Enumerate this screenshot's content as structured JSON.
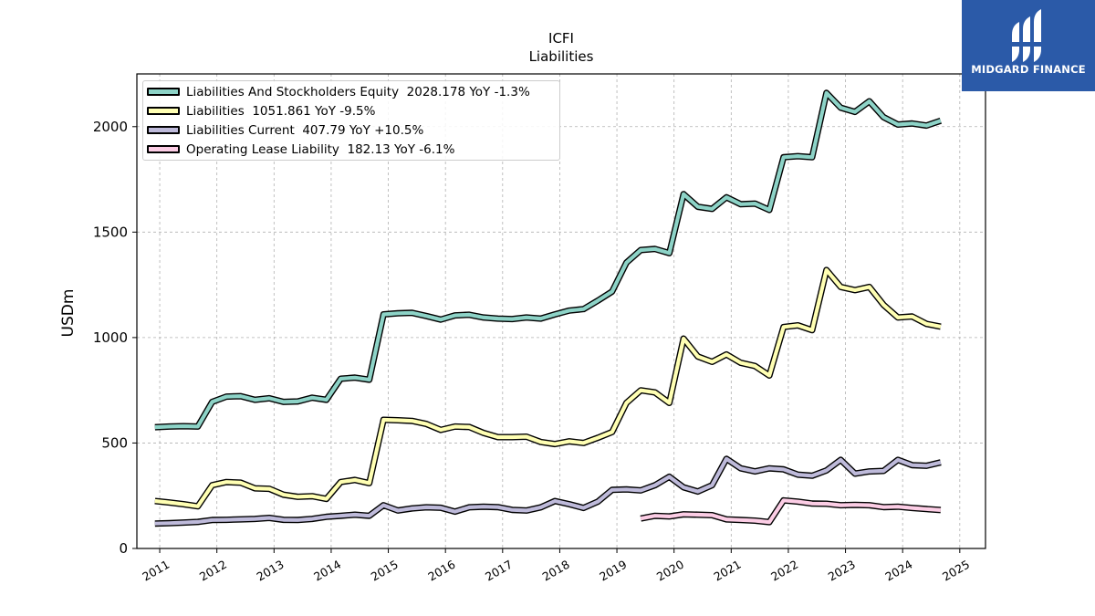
{
  "logo": {
    "text": "MIDGARD FINANCE",
    "background": "#2b5aa8"
  },
  "chart_data": {
    "type": "line",
    "title": "ICFI",
    "subtitle": "Liabilities",
    "ylabel": "USDm",
    "xlabel": "",
    "ylim": [
      0,
      2250
    ],
    "xlim": [
      2010.6,
      2025.45
    ],
    "yticks": [
      0,
      500,
      1000,
      1500,
      2000
    ],
    "xticks": [
      "2011",
      "2012",
      "2013",
      "2014",
      "2015",
      "2016",
      "2017",
      "2018",
      "2019",
      "2020",
      "2021",
      "2022",
      "2023",
      "2024",
      "2025"
    ],
    "grid": true,
    "legend_position": "top-left",
    "series": [
      {
        "name": "Liabilities And Stockholders Equity",
        "legend": "Liabilities And Stockholders Equity  2028.178 YoY -1.3%",
        "color": "#8dd3c7",
        "x": [
          "2010-12",
          "2011-03",
          "2011-06",
          "2011-09",
          "2011-12",
          "2012-03",
          "2012-06",
          "2012-09",
          "2012-12",
          "2013-03",
          "2013-06",
          "2013-09",
          "2013-12",
          "2014-03",
          "2014-06",
          "2014-09",
          "2014-12",
          "2015-03",
          "2015-06",
          "2015-09",
          "2015-12",
          "2016-03",
          "2016-06",
          "2016-09",
          "2016-12",
          "2017-03",
          "2017-06",
          "2017-09",
          "2017-12",
          "2018-03",
          "2018-06",
          "2018-09",
          "2018-12",
          "2019-03",
          "2019-06",
          "2019-09",
          "2019-12",
          "2020-03",
          "2020-06",
          "2020-09",
          "2020-12",
          "2021-03",
          "2021-06",
          "2021-09",
          "2021-12",
          "2022-03",
          "2022-06",
          "2022-09",
          "2022-12",
          "2023-03",
          "2023-06",
          "2023-09",
          "2023-12",
          "2024-03",
          "2024-06",
          "2024-09"
        ],
        "values": [
          575,
          578,
          580,
          578,
          695,
          720,
          722,
          705,
          712,
          695,
          697,
          715,
          705,
          805,
          810,
          800,
          1110,
          1115,
          1117,
          1102,
          1085,
          1105,
          1108,
          1095,
          1090,
          1088,
          1095,
          1090,
          1110,
          1128,
          1135,
          1175,
          1218,
          1355,
          1415,
          1420,
          1400,
          1680,
          1620,
          1610,
          1665,
          1632,
          1635,
          1605,
          1855,
          1860,
          1855,
          2160,
          2090,
          2070,
          2120,
          2045,
          2010,
          2015,
          2005,
          2028
        ]
      },
      {
        "name": "Liabilities",
        "legend": "Liabilities  1051.861 YoY -9.5%",
        "color": "#ffffb3",
        "x": [
          "2010-12",
          "2011-03",
          "2011-06",
          "2011-09",
          "2011-12",
          "2012-03",
          "2012-06",
          "2012-09",
          "2012-12",
          "2013-03",
          "2013-06",
          "2013-09",
          "2013-12",
          "2014-03",
          "2014-06",
          "2014-09",
          "2014-12",
          "2015-03",
          "2015-06",
          "2015-09",
          "2015-12",
          "2016-03",
          "2016-06",
          "2016-09",
          "2016-12",
          "2017-03",
          "2017-06",
          "2017-09",
          "2017-12",
          "2018-03",
          "2018-06",
          "2018-09",
          "2018-12",
          "2019-03",
          "2019-06",
          "2019-09",
          "2019-12",
          "2020-03",
          "2020-06",
          "2020-09",
          "2020-12",
          "2021-03",
          "2021-06",
          "2021-09",
          "2021-12",
          "2022-03",
          "2022-06",
          "2022-09",
          "2022-12",
          "2023-03",
          "2023-06",
          "2023-09",
          "2023-12",
          "2024-03",
          "2024-06",
          "2024-09"
        ],
        "values": [
          225,
          218,
          210,
          200,
          300,
          315,
          312,
          285,
          283,
          255,
          245,
          248,
          235,
          315,
          325,
          310,
          610,
          608,
          605,
          590,
          562,
          578,
          576,
          548,
          528,
          528,
          530,
          505,
          495,
          508,
          500,
          525,
          552,
          690,
          750,
          740,
          690,
          995,
          910,
          885,
          920,
          880,
          865,
          820,
          1050,
          1058,
          1035,
          1320,
          1240,
          1225,
          1240,
          1155,
          1095,
          1100,
          1065,
          1052
        ]
      },
      {
        "name": "Liabilities Current",
        "legend": "Liabilities Current  407.79 YoY +10.5%",
        "color": "#bebada",
        "x": [
          "2010-12",
          "2011-03",
          "2011-06",
          "2011-09",
          "2011-12",
          "2012-03",
          "2012-06",
          "2012-09",
          "2012-12",
          "2013-03",
          "2013-06",
          "2013-09",
          "2013-12",
          "2014-03",
          "2014-06",
          "2014-09",
          "2014-12",
          "2015-03",
          "2015-06",
          "2015-09",
          "2015-12",
          "2016-03",
          "2016-06",
          "2016-09",
          "2016-12",
          "2017-03",
          "2017-06",
          "2017-09",
          "2017-12",
          "2018-03",
          "2018-06",
          "2018-09",
          "2018-12",
          "2019-03",
          "2019-06",
          "2019-09",
          "2019-12",
          "2020-03",
          "2020-06",
          "2020-09",
          "2020-12",
          "2021-03",
          "2021-06",
          "2021-09",
          "2021-12",
          "2022-03",
          "2022-06",
          "2022-09",
          "2022-12",
          "2023-03",
          "2023-06",
          "2023-09",
          "2023-12",
          "2024-03",
          "2024-06",
          "2024-09"
        ],
        "values": [
          118,
          120,
          123,
          126,
          135,
          136,
          138,
          140,
          145,
          136,
          135,
          140,
          150,
          155,
          160,
          155,
          205,
          180,
          190,
          195,
          193,
          175,
          195,
          198,
          196,
          183,
          180,
          195,
          225,
          210,
          192,
          222,
          278,
          280,
          275,
          300,
          340,
          290,
          270,
          300,
          425,
          380,
          365,
          380,
          375,
          350,
          345,
          370,
          420,
          355,
          365,
          368,
          420,
          395,
          392,
          408
        ]
      },
      {
        "name": "Operating Lease Liability",
        "legend": "Operating Lease Liability  182.13 YoY -6.1%",
        "color": "#fccde5",
        "x": [
          "2019-06",
          "2019-09",
          "2019-12",
          "2020-03",
          "2020-06",
          "2020-09",
          "2020-12",
          "2021-03",
          "2021-06",
          "2021-09",
          "2021-12",
          "2022-03",
          "2022-06",
          "2022-09",
          "2022-12",
          "2023-03",
          "2023-06",
          "2023-09",
          "2023-12",
          "2024-03",
          "2024-06",
          "2024-09"
        ],
        "values": [
          142,
          155,
          152,
          162,
          160,
          158,
          138,
          135,
          132,
          125,
          228,
          222,
          213,
          212,
          205,
          207,
          205,
          196,
          198,
          192,
          187,
          182
        ]
      }
    ]
  }
}
